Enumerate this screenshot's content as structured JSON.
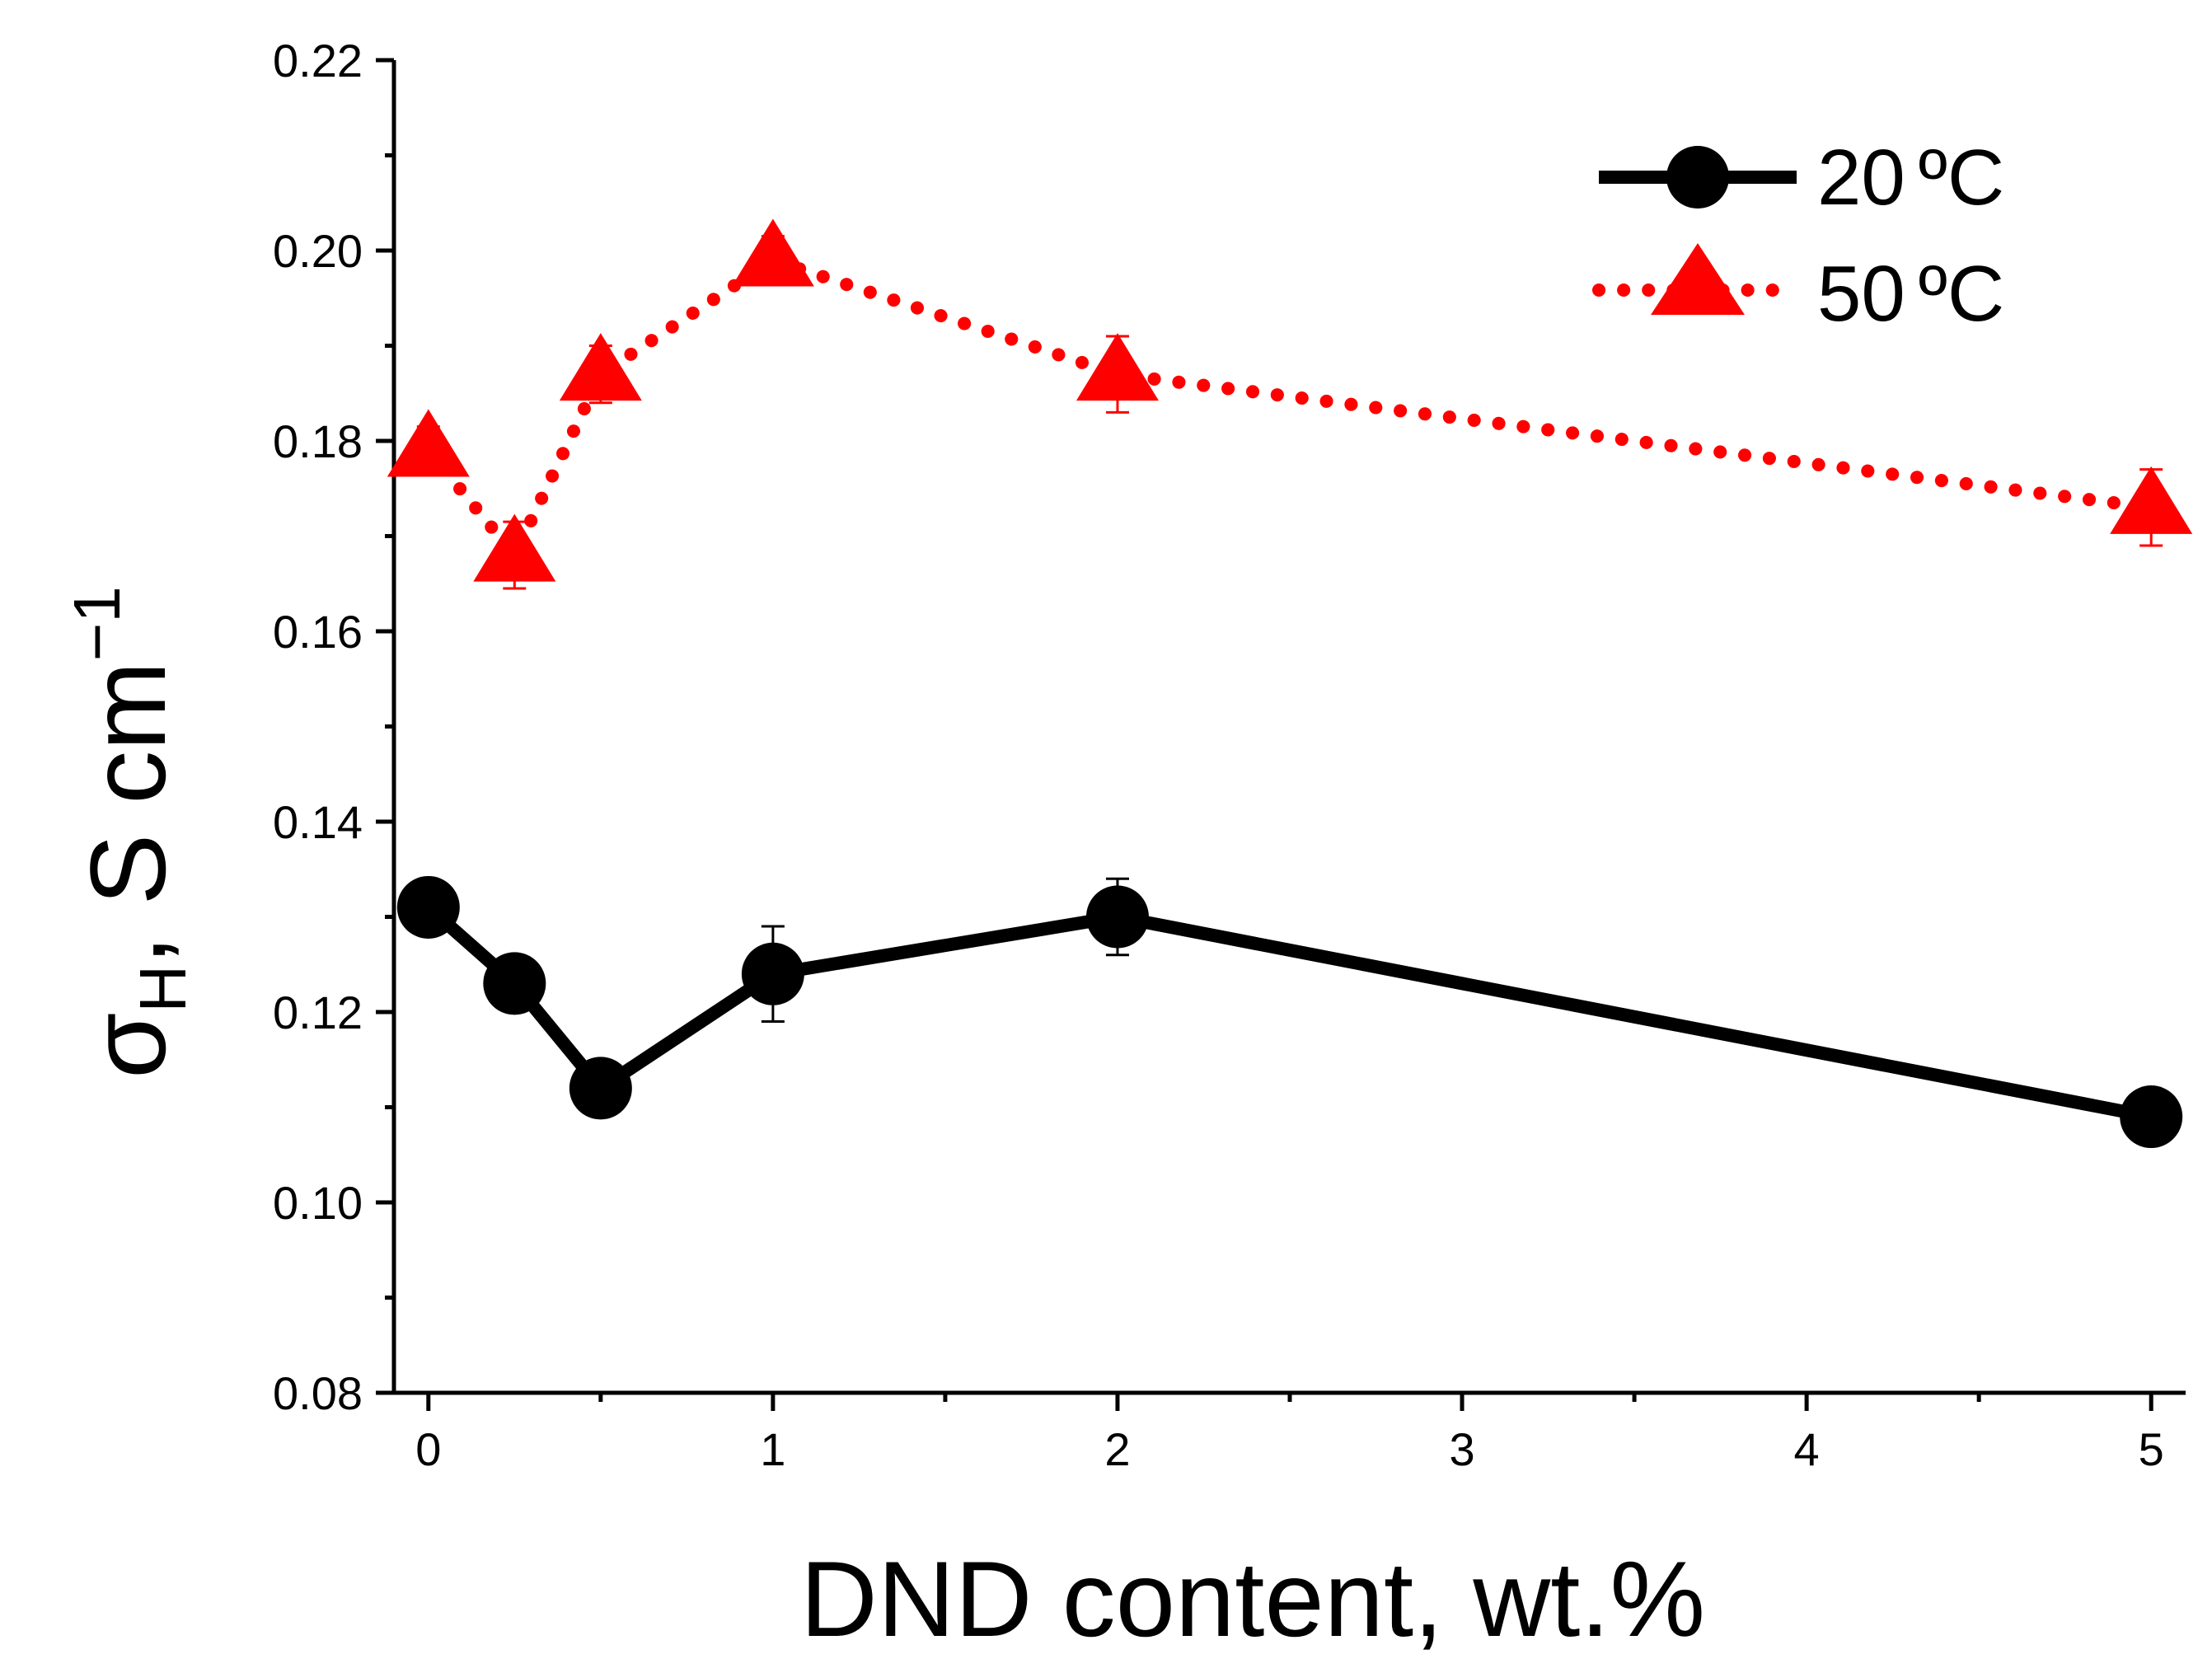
{
  "chart_data": {
    "type": "line",
    "x": [
      0,
      0.25,
      0.5,
      1,
      2,
      5
    ],
    "x_ticks": [
      0,
      1,
      2,
      3,
      4,
      5
    ],
    "x_tick_labels": [
      "0",
      "1",
      "2",
      "3",
      "4",
      "5"
    ],
    "y_ticks": [
      0.08,
      0.1,
      0.12,
      0.14,
      0.16,
      0.18,
      0.2,
      0.22
    ],
    "y_tick_labels": [
      "0.08",
      "0.10",
      "0.12",
      "0.14",
      "0.16",
      "0.18",
      "0.20",
      "0.22"
    ],
    "xlim": [
      -0.1,
      5.1
    ],
    "ylim": [
      0.08,
      0.22
    ],
    "xlabel": "DND content, wt.%",
    "ylabel": {
      "symbol": "σ",
      "subscript": "H",
      "text": ", S cm",
      "superscript": "−1"
    },
    "legend_position": "top-right",
    "series": [
      {
        "name": "20",
        "unit": "ºC",
        "color": "#000000",
        "line": "solid",
        "marker": "circle",
        "values": [
          0.131,
          0.123,
          0.112,
          0.124,
          0.13,
          0.109
        ],
        "errors": [
          0,
          0,
          0,
          0.005,
          0.004,
          0
        ]
      },
      {
        "name": "50",
        "unit": "ºC",
        "color": "#ff0000",
        "line": "dotted",
        "marker": "triangle",
        "values": [
          0.179,
          0.168,
          0.187,
          0.199,
          0.187,
          0.173
        ],
        "errors": [
          0.0025,
          0.0035,
          0.003,
          0.0025,
          0.004,
          0.004
        ]
      }
    ]
  }
}
